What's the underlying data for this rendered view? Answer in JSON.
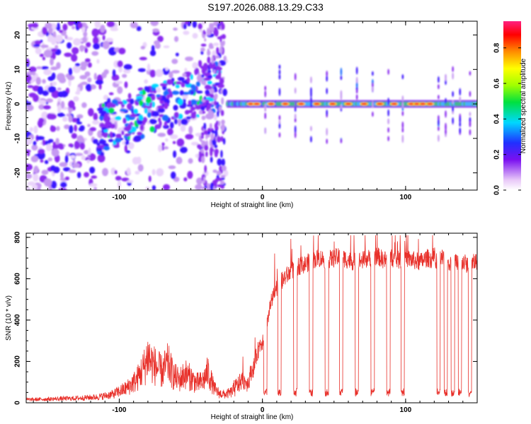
{
  "title": "S197.2026.088.13.29.C33",
  "chart_data": [
    {
      "type": "heatmap",
      "name": "spectrogram",
      "xlabel": "Height of straight line (km)",
      "ylabel": "Frequency (Hz)",
      "xlim": [
        -165,
        150
      ],
      "ylim": [
        -25,
        24
      ],
      "xticks": [
        -100,
        0,
        100
      ],
      "yticks": [
        -20,
        -10,
        0,
        10,
        20
      ],
      "colorbar": {
        "label": "Normalized spectral amplitude",
        "range": [
          0,
          0.95
        ],
        "ticks": [
          "0.0",
          "0.2",
          "0.4",
          "0.6",
          "0.8"
        ],
        "tick_values": [
          0.0,
          0.2,
          0.4,
          0.6,
          0.8
        ]
      }
    },
    {
      "type": "line",
      "name": "snr",
      "xlabel": "Height of straight line (km)",
      "ylabel": "SNR (10 * v/v)",
      "xlim": [
        -165,
        150
      ],
      "ylim": [
        0,
        820
      ],
      "xticks": [
        -100,
        0,
        100
      ],
      "yticks": [
        0,
        200,
        400,
        600,
        800
      ],
      "color": "#e8302a",
      "series": [
        {
          "name": "SNR",
          "x": [
            -165,
            -150,
            -130,
            -115,
            -105,
            -95,
            -88,
            -82,
            -80,
            -78,
            -74,
            -70,
            -66,
            -62,
            -58,
            -54,
            -50,
            -46,
            -42,
            -38,
            -36,
            -34,
            -32,
            -30,
            -26,
            -22,
            -18,
            -14,
            -10,
            -8,
            -6,
            -4,
            -2,
            0,
            2,
            4,
            6,
            8,
            10,
            12,
            14,
            16,
            18,
            20,
            25,
            30,
            35,
            40,
            45,
            50,
            55,
            60,
            65,
            70,
            75,
            80,
            85,
            90,
            95,
            100,
            105,
            110,
            115,
            120,
            125,
            130,
            135,
            140,
            145,
            150
          ],
          "values": [
            15,
            18,
            22,
            28,
            40,
            70,
            110,
            180,
            230,
            200,
            170,
            150,
            190,
            130,
            110,
            140,
            120,
            95,
            100,
            150,
            110,
            75,
            55,
            45,
            40,
            50,
            80,
            110,
            95,
            150,
            170,
            230,
            280,
            300,
            350,
            420,
            480,
            520,
            560,
            580,
            590,
            610,
            620,
            640,
            660,
            670,
            690,
            700,
            690,
            700,
            705,
            690,
            680,
            690,
            700,
            710,
            690,
            700,
            690,
            700,
            690,
            680,
            700,
            690,
            700,
            680,
            690,
            680,
            660,
            690
          ]
        }
      ],
      "dips_x": [
        2,
        12,
        23,
        34,
        45,
        55,
        66,
        77,
        88,
        98,
        123,
        128,
        133,
        138,
        145
      ]
    }
  ]
}
